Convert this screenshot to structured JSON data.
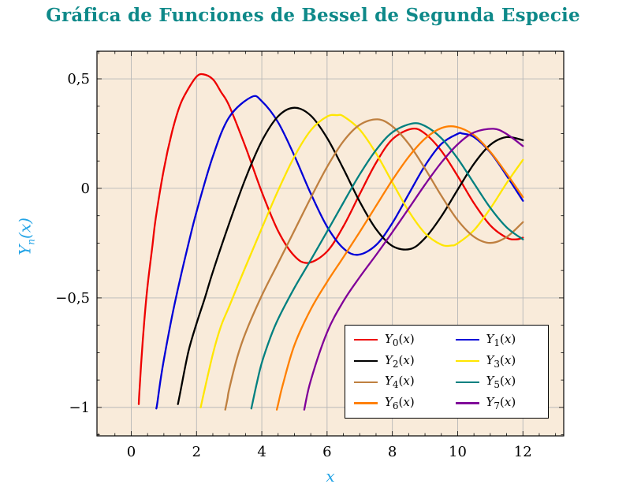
{
  "title": {
    "text": "Gráfica de Funciones de Bessel de Segunda Especie",
    "color": "#0e8989"
  },
  "chart_data": {
    "type": "line",
    "title": "Gráfica de Funciones de Bessel de Segunda Especie",
    "xlabel": "x",
    "ylabel": "Y_n(x)",
    "xlim": [
      -1.05,
      13.25
    ],
    "ylim": [
      -1.13,
      0.626
    ],
    "grid": true,
    "legend_position": "bottom-right",
    "background_color": "#f9ebda",
    "grid_color": "#b8b8b8",
    "frame_color": "#000000",
    "axis_label_color": "#22a3e6",
    "tick_label_color": "#000000",
    "xticks": [
      {
        "v": 0,
        "label": "0"
      },
      {
        "v": 2,
        "label": "2"
      },
      {
        "v": 4,
        "label": "4"
      },
      {
        "v": 6,
        "label": "6"
      },
      {
        "v": 8,
        "label": "8"
      },
      {
        "v": 10,
        "label": "10"
      },
      {
        "v": 12,
        "label": "12"
      }
    ],
    "yticks": [
      {
        "v": -1,
        "label": "−1"
      },
      {
        "v": -0.5,
        "label": "−0,5"
      },
      {
        "v": 0,
        "label": "0"
      },
      {
        "v": 0.5,
        "label": "0,5"
      }
    ],
    "x_minor_step": 0.5,
    "y_minor_step": 0.125,
    "series": [
      {
        "name": "Y_0(x)",
        "n": 0,
        "color": "#ee0000",
        "points": [
          [
            0.23,
            -0.985
          ],
          [
            0.25,
            -0.93
          ],
          [
            0.3,
            -0.807
          ],
          [
            0.4,
            -0.606
          ],
          [
            0.5,
            -0.444
          ],
          [
            0.65,
            -0.26
          ],
          [
            0.75,
            -0.137
          ],
          [
            1,
            0.088
          ],
          [
            1.25,
            0.258
          ],
          [
            1.5,
            0.382
          ],
          [
            1.75,
            0.455
          ],
          [
            2,
            0.51
          ],
          [
            2.2,
            0.521
          ],
          [
            2.5,
            0.498
          ],
          [
            2.75,
            0.44
          ],
          [
            3,
            0.377
          ],
          [
            3.5,
            0.189
          ],
          [
            4,
            -0.017
          ],
          [
            4.5,
            -0.195
          ],
          [
            5,
            -0.309
          ],
          [
            5.43,
            -0.34
          ],
          [
            6,
            -0.288
          ],
          [
            6.5,
            -0.173
          ],
          [
            7,
            -0.026
          ],
          [
            7.5,
            0.117
          ],
          [
            8,
            0.224
          ],
          [
            8.6,
            0.272
          ],
          [
            9,
            0.25
          ],
          [
            9.5,
            0.171
          ],
          [
            10,
            0.056
          ],
          [
            10.5,
            -0.068
          ],
          [
            11,
            -0.169
          ],
          [
            11.5,
            -0.225
          ],
          [
            11.8,
            -0.233
          ],
          [
            12,
            -0.225
          ]
        ]
      },
      {
        "name": "Y_1(x)",
        "n": 1,
        "color": "#0000d8",
        "points": [
          [
            0.77,
            -1.005
          ],
          [
            0.8,
            -0.978
          ],
          [
            0.9,
            -0.873
          ],
          [
            1,
            -0.781
          ],
          [
            1.25,
            -0.584
          ],
          [
            1.5,
            -0.412
          ],
          [
            1.75,
            -0.255
          ],
          [
            2,
            -0.107
          ],
          [
            2.5,
            0.146
          ],
          [
            3,
            0.325
          ],
          [
            3.68,
            0.417
          ],
          [
            4,
            0.398
          ],
          [
            4.5,
            0.301
          ],
          [
            5,
            0.148
          ],
          [
            5.5,
            -0.024
          ],
          [
            6,
            -0.175
          ],
          [
            6.5,
            -0.274
          ],
          [
            6.95,
            -0.303
          ],
          [
            7.5,
            -0.259
          ],
          [
            8,
            -0.158
          ],
          [
            8.5,
            -0.026
          ],
          [
            9,
            0.104
          ],
          [
            9.5,
            0.203
          ],
          [
            10,
            0.249
          ],
          [
            10.15,
            0.25
          ],
          [
            10.5,
            0.234
          ],
          [
            11,
            0.164
          ],
          [
            11.5,
            0.058
          ],
          [
            12,
            -0.057
          ]
        ]
      },
      {
        "name": "Y_2(x)",
        "n": 2,
        "color": "#000000",
        "points": [
          [
            1.43,
            -0.985
          ],
          [
            1.5,
            -0.932
          ],
          [
            1.75,
            -0.746
          ],
          [
            2,
            -0.617
          ],
          [
            2.25,
            -0.503
          ],
          [
            2.5,
            -0.381
          ],
          [
            3,
            -0.16
          ],
          [
            3.5,
            0.045
          ],
          [
            4,
            0.216
          ],
          [
            4.5,
            0.329
          ],
          [
            5,
            0.368
          ],
          [
            5.5,
            0.332
          ],
          [
            6,
            0.23
          ],
          [
            6.5,
            0.089
          ],
          [
            7,
            -0.061
          ],
          [
            7.5,
            -0.186
          ],
          [
            8,
            -0.263
          ],
          [
            8.55,
            -0.277
          ],
          [
            9,
            -0.227
          ],
          [
            9.5,
            -0.128
          ],
          [
            10,
            -0.006
          ],
          [
            10.5,
            0.112
          ],
          [
            11,
            0.199
          ],
          [
            11.5,
            0.234
          ],
          [
            12,
            0.22
          ]
        ]
      },
      {
        "name": "Y_3(x)",
        "n": 3,
        "color": "#ffe600",
        "points": [
          [
            2.13,
            -1.0
          ],
          [
            2.2,
            -0.951
          ],
          [
            2.5,
            -0.756
          ],
          [
            2.75,
            -0.629
          ],
          [
            3,
            -0.539
          ],
          [
            3.5,
            -0.358
          ],
          [
            4,
            -0.182
          ],
          [
            4.5,
            -0.009
          ],
          [
            5,
            0.146
          ],
          [
            5.5,
            0.265
          ],
          [
            6,
            0.328
          ],
          [
            6.3,
            0.334
          ],
          [
            6.5,
            0.329
          ],
          [
            7,
            0.268
          ],
          [
            7.5,
            0.16
          ],
          [
            8,
            0.027
          ],
          [
            8.5,
            -0.104
          ],
          [
            9,
            -0.205
          ],
          [
            9.5,
            -0.257
          ],
          [
            9.8,
            -0.261
          ],
          [
            10,
            -0.251
          ],
          [
            10.5,
            -0.191
          ],
          [
            11,
            -0.092
          ],
          [
            11.5,
            0.024
          ],
          [
            12,
            0.13
          ]
        ]
      },
      {
        "name": "Y_4(x)",
        "n": 4,
        "color": "#bf8040",
        "points": [
          [
            2.88,
            -1.01
          ],
          [
            2.95,
            -0.959
          ],
          [
            3,
            -0.917
          ],
          [
            3.25,
            -0.77
          ],
          [
            3.5,
            -0.66
          ],
          [
            4,
            -0.489
          ],
          [
            4.5,
            -0.341
          ],
          [
            5,
            -0.192
          ],
          [
            5.5,
            -0.043
          ],
          [
            6,
            0.098
          ],
          [
            6.5,
            0.215
          ],
          [
            7,
            0.29
          ],
          [
            7.55,
            0.315
          ],
          [
            8,
            0.283
          ],
          [
            8.5,
            0.203
          ],
          [
            9,
            0.09
          ],
          [
            9.5,
            -0.034
          ],
          [
            10,
            -0.145
          ],
          [
            10.5,
            -0.221
          ],
          [
            11,
            -0.249
          ],
          [
            11.5,
            -0.222
          ],
          [
            12,
            -0.154
          ]
        ]
      },
      {
        "name": "Y_5(x)",
        "n": 5,
        "color": "#008080",
        "points": [
          [
            3.68,
            -1.005
          ],
          [
            3.85,
            -0.887
          ],
          [
            4,
            -0.796
          ],
          [
            4.25,
            -0.686
          ],
          [
            4.5,
            -0.596
          ],
          [
            5,
            -0.454
          ],
          [
            5.5,
            -0.327
          ],
          [
            6,
            -0.197
          ],
          [
            6.5,
            -0.065
          ],
          [
            7,
            0.064
          ],
          [
            7.5,
            0.175
          ],
          [
            8,
            0.256
          ],
          [
            8.6,
            0.296
          ],
          [
            9,
            0.285
          ],
          [
            9.5,
            0.229
          ],
          [
            10,
            0.136
          ],
          [
            10.5,
            0.023
          ],
          [
            11,
            -0.089
          ],
          [
            11.5,
            -0.178
          ],
          [
            12,
            -0.233
          ]
        ]
      },
      {
        "name": "Y_6(x)",
        "n": 6,
        "color": "#ff8000",
        "points": [
          [
            4.46,
            -1.01
          ],
          [
            4.5,
            -0.985
          ],
          [
            4.65,
            -0.893
          ],
          [
            5,
            -0.715
          ],
          [
            5.5,
            -0.552
          ],
          [
            6,
            -0.427
          ],
          [
            6.5,
            -0.314
          ],
          [
            7,
            -0.199
          ],
          [
            7.5,
            -0.08
          ],
          [
            8,
            0.038
          ],
          [
            8.5,
            0.144
          ],
          [
            9,
            0.227
          ],
          [
            9.5,
            0.275
          ],
          [
            9.95,
            0.281
          ],
          [
            10.5,
            0.243
          ],
          [
            11,
            0.167
          ],
          [
            11.5,
            0.067
          ],
          [
            12,
            -0.04
          ]
        ]
      },
      {
        "name": "Y_7(x)",
        "n": 7,
        "color": "#800099",
        "points": [
          [
            5.3,
            -1.01
          ],
          [
            5.5,
            -0.877
          ],
          [
            6,
            -0.657
          ],
          [
            6.5,
            -0.515
          ],
          [
            7,
            -0.405
          ],
          [
            7.5,
            -0.304
          ],
          [
            8,
            -0.2
          ],
          [
            8.5,
            -0.092
          ],
          [
            9,
            0.017
          ],
          [
            9.5,
            0.118
          ],
          [
            10,
            0.201
          ],
          [
            10.5,
            0.255
          ],
          [
            11.1,
            0.272
          ],
          [
            11.5,
            0.248
          ],
          [
            12,
            0.193
          ]
        ]
      }
    ]
  }
}
